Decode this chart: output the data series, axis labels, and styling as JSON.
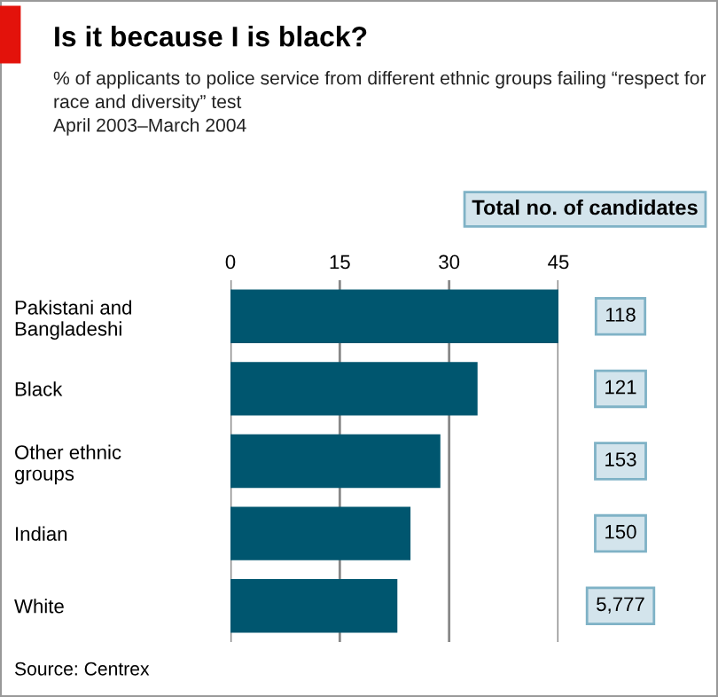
{
  "chart_data": {
    "type": "bar",
    "orientation": "horizontal",
    "title": "Is it because I is black?",
    "subtitle": "% of applicants to police service from different ethnic groups failing “respect for race and diversity” test\nApril 2003–March 2004",
    "categories": [
      "Pakistani and Bangladeshi",
      "Black",
      "Other ethnic groups",
      "Indian",
      "White"
    ],
    "values": [
      45,
      33.9,
      28.8,
      24.7,
      22.9
    ],
    "color": "#00566f",
    "xlim": [
      0,
      45
    ],
    "xticks": [
      0,
      15,
      30,
      45
    ],
    "grid": "x",
    "annotations": [
      "Total no. of candidates",
      "118",
      "121",
      "153",
      "150",
      "5,777",
      "Source: Centrex"
    ]
  }
}
